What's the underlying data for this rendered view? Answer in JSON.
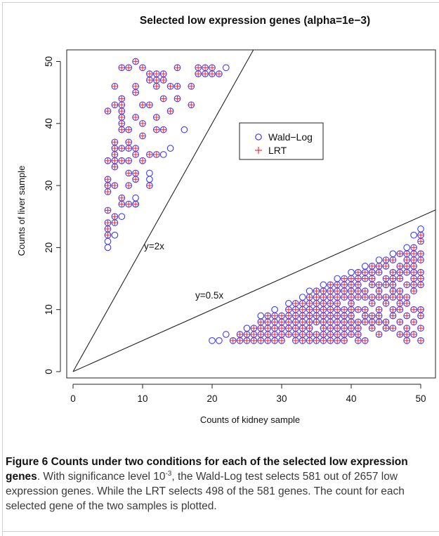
{
  "chart_data": {
    "type": "scatter",
    "title": "Selected low expression genes (alpha=1e−3)",
    "xlabel": "Counts of kidney sample",
    "ylabel": "Counts of liver sample",
    "xlim": [
      0,
      50
    ],
    "ylim": [
      0,
      50
    ],
    "x_ticks": [
      "0",
      "10",
      "20",
      "30",
      "40",
      "50"
    ],
    "y_ticks": [
      "0",
      "10",
      "20",
      "30",
      "40",
      "50"
    ],
    "reference_lines": [
      {
        "label": "y=2x",
        "slope": 2
      },
      {
        "label": "y=0.5x",
        "slope": 0.5
      }
    ],
    "legend_position": "top-right",
    "series": [
      {
        "name": "Wald−Log",
        "marker": "open-circle",
        "color": "#3a3aff",
        "points": [
          [
            5,
            20
          ],
          [
            5,
            21
          ],
          [
            6,
            22
          ],
          [
            7,
            25
          ],
          [
            9,
            27
          ],
          [
            9,
            28
          ],
          [
            11,
            31
          ],
          [
            11,
            32
          ],
          [
            13,
            35
          ],
          [
            14,
            36
          ],
          [
            16,
            39
          ],
          [
            22,
            49
          ],
          [
            20,
            5
          ],
          [
            21,
            5
          ],
          [
            22,
            6
          ],
          [
            25,
            7
          ],
          [
            27,
            9
          ],
          [
            29,
            10
          ],
          [
            31,
            11
          ],
          [
            33,
            12
          ],
          [
            34,
            13
          ],
          [
            36,
            14
          ],
          [
            38,
            15
          ],
          [
            40,
            16
          ],
          [
            42,
            17
          ],
          [
            44,
            18
          ],
          [
            46,
            19
          ],
          [
            48,
            20
          ],
          [
            49,
            22
          ],
          [
            50,
            23
          ]
        ]
      },
      {
        "name": "LRT",
        "marker": "plus",
        "color": "#ff3030",
        "points": [
          [
            5,
            22
          ],
          [
            5,
            23
          ],
          [
            5,
            24
          ],
          [
            5,
            26
          ],
          [
            5,
            29
          ],
          [
            5,
            30
          ],
          [
            5,
            31
          ],
          [
            5,
            34
          ],
          [
            5,
            42
          ],
          [
            6,
            24
          ],
          [
            6,
            25
          ],
          [
            6,
            30
          ],
          [
            6,
            33
          ],
          [
            6,
            34
          ],
          [
            6,
            35
          ],
          [
            6,
            36
          ],
          [
            6,
            37
          ],
          [
            6,
            43
          ],
          [
            6,
            46
          ],
          [
            7,
            27
          ],
          [
            7,
            28
          ],
          [
            7,
            34
          ],
          [
            7,
            36
          ],
          [
            7,
            39
          ],
          [
            7,
            40
          ],
          [
            7,
            41
          ],
          [
            7,
            42
          ],
          [
            7,
            43
          ],
          [
            7,
            44
          ],
          [
            7,
            49
          ],
          [
            8,
            27
          ],
          [
            8,
            30
          ],
          [
            8,
            32
          ],
          [
            8,
            34
          ],
          [
            8,
            36
          ],
          [
            8,
            37
          ],
          [
            8,
            39
          ],
          [
            8,
            49
          ],
          [
            9,
            27
          ],
          [
            9,
            31
          ],
          [
            9,
            32
          ],
          [
            9,
            35
          ],
          [
            9,
            36
          ],
          [
            9,
            41
          ],
          [
            9,
            45
          ],
          [
            9,
            46
          ],
          [
            9,
            50
          ],
          [
            10,
            34
          ],
          [
            10,
            38
          ],
          [
            10,
            40
          ],
          [
            10,
            43
          ],
          [
            10,
            49
          ],
          [
            11,
            30
          ],
          [
            11,
            35
          ],
          [
            11,
            43
          ],
          [
            11,
            47
          ],
          [
            11,
            48
          ],
          [
            12,
            35
          ],
          [
            12,
            39
          ],
          [
            12,
            41
          ],
          [
            12,
            46
          ],
          [
            12,
            47
          ],
          [
            12,
            48
          ],
          [
            13,
            39
          ],
          [
            13,
            44
          ],
          [
            13,
            47
          ],
          [
            13,
            48
          ],
          [
            14,
            42
          ],
          [
            14,
            46
          ],
          [
            15,
            44
          ],
          [
            15,
            46
          ],
          [
            15,
            49
          ],
          [
            17,
            43
          ],
          [
            17,
            46
          ],
          [
            18,
            48
          ],
          [
            18,
            49
          ],
          [
            19,
            48
          ],
          [
            19,
            49
          ],
          [
            20,
            48
          ],
          [
            20,
            49
          ],
          [
            21,
            48
          ],
          [
            23,
            5
          ],
          [
            24,
            5
          ],
          [
            24,
            6
          ],
          [
            25,
            5
          ],
          [
            25,
            6
          ],
          [
            26,
            5
          ],
          [
            26,
            6
          ],
          [
            26,
            7
          ],
          [
            27,
            5
          ],
          [
            27,
            6
          ],
          [
            27,
            7
          ],
          [
            27,
            8
          ],
          [
            28,
            5
          ],
          [
            28,
            6
          ],
          [
            28,
            7
          ],
          [
            28,
            8
          ],
          [
            28,
            9
          ],
          [
            29,
            5
          ],
          [
            29,
            6
          ],
          [
            29,
            7
          ],
          [
            29,
            8
          ],
          [
            29,
            9
          ],
          [
            30,
            5
          ],
          [
            30,
            6
          ],
          [
            30,
            7
          ],
          [
            30,
            8
          ],
          [
            30,
            9
          ],
          [
            31,
            6
          ],
          [
            31,
            7
          ],
          [
            31,
            8
          ],
          [
            31,
            9
          ],
          [
            31,
            10
          ],
          [
            32,
            5
          ],
          [
            32,
            6
          ],
          [
            32,
            7
          ],
          [
            32,
            8
          ],
          [
            32,
            9
          ],
          [
            32,
            10
          ],
          [
            32,
            11
          ],
          [
            33,
            5
          ],
          [
            33,
            6
          ],
          [
            33,
            7
          ],
          [
            33,
            8
          ],
          [
            33,
            9
          ],
          [
            33,
            10
          ],
          [
            33,
            11
          ],
          [
            34,
            5
          ],
          [
            34,
            6
          ],
          [
            34,
            7
          ],
          [
            34,
            8
          ],
          [
            34,
            9
          ],
          [
            34,
            10
          ],
          [
            34,
            11
          ],
          [
            34,
            12
          ],
          [
            35,
            5
          ],
          [
            35,
            6
          ],
          [
            35,
            8
          ],
          [
            35,
            9
          ],
          [
            35,
            10
          ],
          [
            35,
            11
          ],
          [
            35,
            12
          ],
          [
            35,
            13
          ],
          [
            36,
            5
          ],
          [
            36,
            6
          ],
          [
            36,
            7
          ],
          [
            36,
            8
          ],
          [
            36,
            9
          ],
          [
            36,
            10
          ],
          [
            36,
            11
          ],
          [
            36,
            12
          ],
          [
            36,
            13
          ],
          [
            37,
            5
          ],
          [
            37,
            6
          ],
          [
            37,
            7
          ],
          [
            37,
            8
          ],
          [
            37,
            9
          ],
          [
            37,
            10
          ],
          [
            37,
            11
          ],
          [
            37,
            12
          ],
          [
            37,
            13
          ],
          [
            37,
            14
          ],
          [
            38,
            5
          ],
          [
            38,
            6
          ],
          [
            38,
            7
          ],
          [
            38,
            8
          ],
          [
            38,
            9
          ],
          [
            38,
            10
          ],
          [
            38,
            11
          ],
          [
            38,
            12
          ],
          [
            38,
            13
          ],
          [
            38,
            14
          ],
          [
            39,
            5
          ],
          [
            39,
            6
          ],
          [
            39,
            7
          ],
          [
            39,
            8
          ],
          [
            39,
            9
          ],
          [
            39,
            10
          ],
          [
            39,
            12
          ],
          [
            39,
            13
          ],
          [
            39,
            14
          ],
          [
            39,
            15
          ],
          [
            40,
            6
          ],
          [
            40,
            7
          ],
          [
            40,
            8
          ],
          [
            40,
            9
          ],
          [
            40,
            10
          ],
          [
            40,
            11
          ],
          [
            40,
            12
          ],
          [
            40,
            13
          ],
          [
            40,
            14
          ],
          [
            40,
            15
          ],
          [
            41,
            5
          ],
          [
            41,
            6
          ],
          [
            41,
            7
          ],
          [
            41,
            8
          ],
          [
            41,
            10
          ],
          [
            41,
            12
          ],
          [
            41,
            13
          ],
          [
            41,
            14
          ],
          [
            41,
            15
          ],
          [
            41,
            16
          ],
          [
            42,
            5
          ],
          [
            42,
            8
          ],
          [
            42,
            9
          ],
          [
            42,
            10
          ],
          [
            42,
            12
          ],
          [
            42,
            13
          ],
          [
            42,
            15
          ],
          [
            42,
            16
          ],
          [
            43,
            7
          ],
          [
            43,
            8
          ],
          [
            43,
            9
          ],
          [
            43,
            11
          ],
          [
            43,
            12
          ],
          [
            43,
            14
          ],
          [
            43,
            15
          ],
          [
            43,
            16
          ],
          [
            43,
            17
          ],
          [
            44,
            6
          ],
          [
            44,
            8
          ],
          [
            44,
            9
          ],
          [
            44,
            10
          ],
          [
            44,
            12
          ],
          [
            44,
            13
          ],
          [
            44,
            14
          ],
          [
            44,
            16
          ],
          [
            44,
            17
          ],
          [
            45,
            7
          ],
          [
            45,
            8
          ],
          [
            45,
            11
          ],
          [
            45,
            12
          ],
          [
            45,
            14
          ],
          [
            45,
            15
          ],
          [
            45,
            17
          ],
          [
            45,
            18
          ],
          [
            46,
            7
          ],
          [
            46,
            9
          ],
          [
            46,
            10
          ],
          [
            46,
            12
          ],
          [
            46,
            13
          ],
          [
            46,
            14
          ],
          [
            46,
            15
          ],
          [
            46,
            16
          ],
          [
            46,
            18
          ],
          [
            47,
            6
          ],
          [
            47,
            8
          ],
          [
            47,
            10
          ],
          [
            47,
            11
          ],
          [
            47,
            12
          ],
          [
            47,
            13
          ],
          [
            47,
            15
          ],
          [
            47,
            16
          ],
          [
            47,
            17
          ],
          [
            47,
            19
          ],
          [
            48,
            5
          ],
          [
            48,
            6
          ],
          [
            48,
            7
          ],
          [
            48,
            9
          ],
          [
            48,
            11
          ],
          [
            48,
            12
          ],
          [
            48,
            14
          ],
          [
            48,
            16
          ],
          [
            48,
            17
          ],
          [
            48,
            18
          ],
          [
            48,
            19
          ],
          [
            49,
            6
          ],
          [
            49,
            8
          ],
          [
            49,
            10
          ],
          [
            49,
            13
          ],
          [
            49,
            14
          ],
          [
            49,
            15
          ],
          [
            49,
            16
          ],
          [
            49,
            17
          ],
          [
            49,
            18
          ],
          [
            49,
            19
          ],
          [
            49,
            20
          ],
          [
            50,
            5
          ],
          [
            50,
            7
          ],
          [
            50,
            9
          ],
          [
            50,
            10
          ],
          [
            50,
            14
          ],
          [
            50,
            15
          ],
          [
            50,
            16
          ],
          [
            50,
            18
          ],
          [
            50,
            19
          ],
          [
            50,
            21
          ],
          [
            50,
            22
          ]
        ]
      }
    ]
  },
  "caption": {
    "label": "Figure 6",
    "title": "Counts under two conditions for each of the selected low expression genes",
    "text_before_exponent": ". With significance level 10",
    "exponent": "-3",
    "text_after_exponent": ", the Wald-Log test selects 581 out of 2657 low expression genes. While the LRT selects 498 of the 581 genes. The count for each selected gene of the two samples is plotted."
  }
}
